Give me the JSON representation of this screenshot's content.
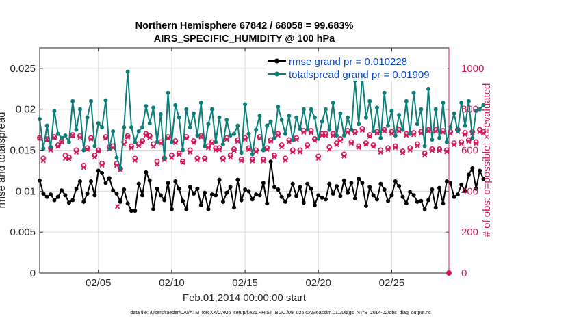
{
  "chart_data": {
    "type": "line",
    "title_line1": "Northern Hemisphere 67842 / 68058 = 99.683%",
    "title_line2": "AIRS_SPECIFIC_HUMIDITY @ 100 hPa",
    "xlabel": "Feb.01,2014 00:00:00 start",
    "ylabel_left": "rmse and totalspread",
    "ylabel_right": "# of obs: o=possible; ×=evaluated",
    "footer": "data file: /Users/raeder/DAI/ATM_forcXX/CAM6_setup/f.e21.FHIST_BGC.f09_025.CAM6assim.011/Diags_NTrS_2014-02/obs_diag_output.nc",
    "xlim": [
      1.0,
      28.9
    ],
    "ylim_left": [
      0,
      0.0275
    ],
    "ylim_right": [
      0,
      1100
    ],
    "x_ticks": [
      5,
      10,
      15,
      20,
      25
    ],
    "x_tick_labels": [
      "02/05",
      "02/10",
      "02/15",
      "02/20",
      "02/25"
    ],
    "y_left_ticks": [
      0,
      0.005,
      0.01,
      0.015,
      0.02,
      0.025
    ],
    "y_left_tick_labels": [
      "0",
      "0.005",
      "0.01",
      "0.015",
      "0.02",
      "0.025"
    ],
    "y_right_ticks": [
      0,
      200,
      400,
      600,
      800,
      1000
    ],
    "y_right_tick_labels": [
      "0",
      "200",
      "400",
      "600",
      "800",
      "1000"
    ],
    "legend_position": "top-right",
    "x_start": 1.0,
    "x_step": 0.25,
    "series": [
      {
        "name": "rmse grand pr = 0.010228",
        "color": "#000000",
        "marker": "circle",
        "values": [
          0.0113,
          0.0097,
          0.0093,
          0.0096,
          0.0089,
          0.0093,
          0.0101,
          0.0095,
          0.0086,
          0.0089,
          0.0103,
          0.0112,
          0.0087,
          0.0097,
          0.0112,
          0.0095,
          0.0125,
          0.0122,
          0.011,
          0.0116,
          0.0101,
          0.0097,
          0.0087,
          0.0102,
          0.0085,
          0.0076,
          0.0076,
          0.0109,
          0.0095,
          0.0123,
          0.0113,
          0.0078,
          0.0103,
          0.0095,
          0.0089,
          0.011,
          0.0078,
          0.0112,
          0.0103,
          0.0088,
          0.0078,
          0.0105,
          0.0097,
          0.0103,
          0.0083,
          0.0098,
          0.0078,
          0.0096,
          0.0095,
          0.0114,
          0.0087,
          0.0098,
          0.0105,
          0.008,
          0.0114,
          0.0089,
          0.0102,
          0.01,
          0.009,
          0.0096,
          0.0095,
          0.011,
          0.0085,
          0.0136,
          0.0105,
          0.0102,
          0.0093,
          0.0087,
          0.0095,
          0.0109,
          0.0094,
          0.0105,
          0.0086,
          0.0109,
          0.0103,
          0.0083,
          0.0095,
          0.0092,
          0.009,
          0.0109,
          0.0097,
          0.0106,
          0.0094,
          0.0113,
          0.0098,
          0.011,
          0.0091,
          0.0115,
          0.011,
          0.0082,
          0.0105,
          0.0095,
          0.009,
          0.0109,
          0.0102,
          0.0088,
          0.0095,
          0.0112,
          0.0106,
          0.0093,
          0.0085,
          0.0099,
          0.0095,
          0.0087,
          0.0088,
          0.0078,
          0.0089,
          0.0102,
          0.008,
          0.0104,
          0.0085,
          0.0112,
          0.011,
          0.0093,
          0.0096,
          0.0108,
          0.01,
          0.012,
          0.0128,
          0.0103,
          0.0125,
          0.0115
        ]
      },
      {
        "name": "totalspread grand pr = 0.01909",
        "color": "#0a7f7a",
        "marker": "circle",
        "values": [
          0.0188,
          0.0152,
          0.018,
          0.0154,
          0.0198,
          0.017,
          0.0165,
          0.0168,
          0.016,
          0.021,
          0.0175,
          0.02,
          0.015,
          0.019,
          0.021,
          0.0155,
          0.0183,
          0.0178,
          0.0211,
          0.0152,
          0.0173,
          0.0141,
          0.0128,
          0.0178,
          0.0246,
          0.0178,
          0.016,
          0.0173,
          0.0178,
          0.0204,
          0.0183,
          0.0202,
          0.016,
          0.0194,
          0.014,
          0.022,
          0.016,
          0.0205,
          0.019,
          0.015,
          0.02,
          0.0178,
          0.0195,
          0.0168,
          0.0208,
          0.0155,
          0.0182,
          0.02,
          0.016,
          0.019,
          0.0157,
          0.0187,
          0.0168,
          0.017,
          0.018,
          0.0147,
          0.0206,
          0.017,
          0.0145,
          0.0175,
          0.0192,
          0.015,
          0.018,
          0.0185,
          0.0165,
          0.0203,
          0.0187,
          0.017,
          0.0192,
          0.0162,
          0.019,
          0.0176,
          0.02,
          0.0175,
          0.02,
          0.019,
          0.0164,
          0.0185,
          0.02,
          0.0175,
          0.0208,
          0.0168,
          0.0195,
          0.0168,
          0.019,
          0.0175,
          0.0235,
          0.0182,
          0.024,
          0.019,
          0.021,
          0.0173,
          0.0202,
          0.0165,
          0.022,
          0.018,
          0.0198,
          0.0168,
          0.0193,
          0.0175,
          0.021,
          0.017,
          0.022,
          0.0182,
          0.02,
          0.0155,
          0.0225,
          0.0163,
          0.02,
          0.0165,
          0.0208,
          0.016,
          0.0178,
          0.0195,
          0.0173,
          0.0208,
          0.018,
          0.021,
          0.0165,
          0.0198,
          0.02,
          0.0205
        ]
      },
      {
        "name": "obs possible",
        "color": "#d6175c",
        "marker": "o",
        "values": [
          660,
          560,
          655,
          610,
          665,
          625,
          645,
          575,
          565,
          675,
          600,
          670,
          525,
          610,
          660,
          575,
          600,
          535,
          665,
          615,
          620,
          535,
          510,
          640,
          670,
          620,
          560,
          630,
          645,
          680,
          670,
          630,
          545,
          640,
          560,
          665,
          575,
          645,
          585,
          545,
          665,
          600,
          645,
          560,
          670,
          560,
          620,
          640,
          610,
          610,
          560,
          660,
          575,
          605,
          650,
          555,
          660,
          610,
          555,
          600,
          665,
          555,
          610,
          650,
          575,
          680,
          625,
          560,
          650,
          600,
          660,
          600,
          695,
          625,
          695,
          655,
          570,
          680,
          680,
          615,
          680,
          635,
          655,
          580,
          695,
          640,
          690,
          620,
          705,
          635,
          675,
          625,
          690,
          600,
          700,
          610,
          690,
          620,
          700,
          595,
          680,
          610,
          685,
          630,
          690,
          585,
          700,
          605,
          700,
          605,
          695,
          600,
          690,
          635,
          700,
          640,
          685,
          650,
          690,
          640,
          700,
          690
        ]
      },
      {
        "name": "obs evaluated",
        "color": "#d6175c",
        "marker": "x",
        "values": [
          657,
          549,
          652,
          601,
          661,
          619,
          641,
          560,
          558,
          671,
          590,
          662,
          516,
          604,
          655,
          566,
          595,
          527,
          659,
          606,
          612,
          526,
          504,
          629,
          665,
          612,
          551,
          622,
          639,
          673,
          662,
          618,
          533,
          634,
          554,
          659,
          564,
          637,
          579,
          540,
          659,
          590,
          638,
          553,
          665,
          553,
          612,
          634,
          601,
          602,
          553,
          653,
          566,
          599,
          643,
          549,
          653,
          604,
          548,
          594,
          659,
          548,
          604,
          644,
          568,
          673,
          616,
          551,
          641,
          592,
          653,
          592,
          687,
          617,
          686,
          648,
          560,
          673,
          672,
          604,
          672,
          627,
          646,
          571,
          687,
          633,
          683,
          614,
          697,
          629,
          668,
          618,
          684,
          590,
          694,
          603,
          682,
          613,
          693,
          587,
          673,
          601,
          676,
          622,
          683,
          577,
          694,
          599,
          693,
          599,
          688,
          593,
          682,
          627,
          691,
          632,
          677,
          643,
          683,
          633,
          690,
          683
        ]
      }
    ],
    "outlier_evaluated": {
      "x": 6.3,
      "value": 325
    }
  }
}
